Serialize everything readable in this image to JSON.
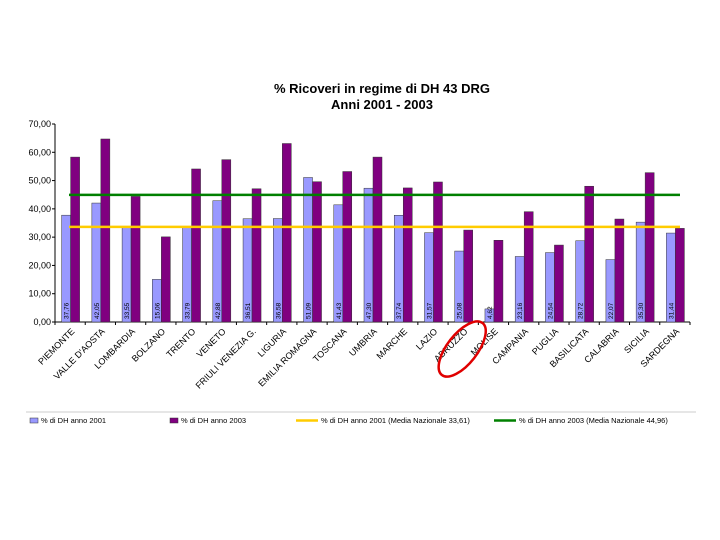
{
  "chart_data": {
    "type": "bar",
    "title_line1": "% Ricoveri in regime di DH 43 DRG",
    "title_line2": "Anni 2001 - 2003",
    "xlabel": "",
    "ylabel": "",
    "ylim": [
      0,
      70
    ],
    "yticks": [
      "0,00",
      "10,00",
      "20,00",
      "30,00",
      "40,00",
      "50,00",
      "60,00",
      "70,00"
    ],
    "grid": false,
    "legend_position": "bottom",
    "categories": [
      "PIEMONTE",
      "VALLE D'AOSTA",
      "LOMBARDIA",
      "BOLZANO",
      "TRENTO",
      "VENETO",
      "FRIULI VENEZIA G.",
      "LIGURIA",
      "EMILIA ROMAGNA",
      "TOSCANA",
      "UMBRIA",
      "MARCHE",
      "LAZIO",
      "ABRUZZO",
      "MOLISE",
      "CAMPANIA",
      "PUGLIA",
      "BASILICATA",
      "CALABRIA",
      "SICILIA",
      "SARDEGNA"
    ],
    "series": [
      {
        "name": "% di DH anno 2001",
        "color": "#9999ff",
        "values": [
          37.76,
          42.05,
          33.55,
          15.06,
          33.79,
          42.88,
          36.51,
          36.58,
          51.09,
          41.43,
          47.3,
          37.74,
          31.57,
          25.08,
          4.62,
          23.16,
          24.54,
          28.72,
          22.07,
          35.3,
          31.44
        ],
        "labels": [
          "37,76",
          "42,05",
          "33,55",
          "15,06",
          "33,79",
          "42,88",
          "36,51",
          "36,58",
          "51,09",
          "41,43",
          "47,30",
          "37,74",
          "31,57",
          "25,08",
          "4,62",
          "23,16",
          "24,54",
          "28,72",
          "22,07",
          "35,30",
          "31,44"
        ]
      },
      {
        "name": "% di DH anno 2003",
        "color": "#800080",
        "values": [
          58.3,
          64.7,
          44.4,
          30.1,
          54.1,
          57.4,
          47.1,
          63.1,
          49.6,
          53.2,
          58.3,
          47.4,
          49.5,
          32.5,
          28.9,
          39.0,
          27.2,
          48.0,
          36.4,
          52.8,
          33.1
        ],
        "labels": []
      }
    ],
    "reference_lines": [
      {
        "name": "% di DH anno 2001 (Media Nazionale 33,61)",
        "value": 33.61,
        "color": "#ffcc00"
      },
      {
        "name": "% di DH anno 2003 (Media Nazionale 44,96)",
        "value": 44.96,
        "color": "#008000"
      }
    ],
    "highlight_category": "ABRUZZO",
    "highlight_color": "#e00000"
  }
}
